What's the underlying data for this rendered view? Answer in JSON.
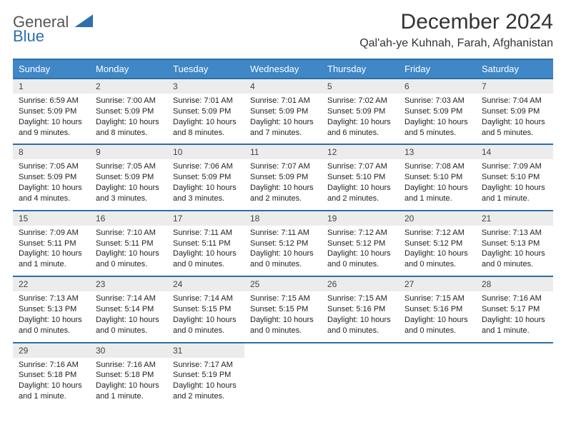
{
  "brand": {
    "line1": "General",
    "line2": "Blue"
  },
  "title": "December 2024",
  "location": "Qal'ah-ye Kuhnah, Farah, Afghanistan",
  "colors": {
    "accent": "#3f87c7",
    "line": "#2b6fa8",
    "dayNumBg": "#ececec",
    "bg": "#ffffff",
    "text": "#222222"
  },
  "dayNames": [
    "Sunday",
    "Monday",
    "Tuesday",
    "Wednesday",
    "Thursday",
    "Friday",
    "Saturday"
  ],
  "weeks": [
    [
      {
        "n": "1",
        "sr": "6:59 AM",
        "ss": "5:09 PM",
        "dl": "10 hours and 9 minutes."
      },
      {
        "n": "2",
        "sr": "7:00 AM",
        "ss": "5:09 PM",
        "dl": "10 hours and 8 minutes."
      },
      {
        "n": "3",
        "sr": "7:01 AM",
        "ss": "5:09 PM",
        "dl": "10 hours and 8 minutes."
      },
      {
        "n": "4",
        "sr": "7:01 AM",
        "ss": "5:09 PM",
        "dl": "10 hours and 7 minutes."
      },
      {
        "n": "5",
        "sr": "7:02 AM",
        "ss": "5:09 PM",
        "dl": "10 hours and 6 minutes."
      },
      {
        "n": "6",
        "sr": "7:03 AM",
        "ss": "5:09 PM",
        "dl": "10 hours and 5 minutes."
      },
      {
        "n": "7",
        "sr": "7:04 AM",
        "ss": "5:09 PM",
        "dl": "10 hours and 5 minutes."
      }
    ],
    [
      {
        "n": "8",
        "sr": "7:05 AM",
        "ss": "5:09 PM",
        "dl": "10 hours and 4 minutes."
      },
      {
        "n": "9",
        "sr": "7:05 AM",
        "ss": "5:09 PM",
        "dl": "10 hours and 3 minutes."
      },
      {
        "n": "10",
        "sr": "7:06 AM",
        "ss": "5:09 PM",
        "dl": "10 hours and 3 minutes."
      },
      {
        "n": "11",
        "sr": "7:07 AM",
        "ss": "5:09 PM",
        "dl": "10 hours and 2 minutes."
      },
      {
        "n": "12",
        "sr": "7:07 AM",
        "ss": "5:10 PM",
        "dl": "10 hours and 2 minutes."
      },
      {
        "n": "13",
        "sr": "7:08 AM",
        "ss": "5:10 PM",
        "dl": "10 hours and 1 minute."
      },
      {
        "n": "14",
        "sr": "7:09 AM",
        "ss": "5:10 PM",
        "dl": "10 hours and 1 minute."
      }
    ],
    [
      {
        "n": "15",
        "sr": "7:09 AM",
        "ss": "5:11 PM",
        "dl": "10 hours and 1 minute."
      },
      {
        "n": "16",
        "sr": "7:10 AM",
        "ss": "5:11 PM",
        "dl": "10 hours and 0 minutes."
      },
      {
        "n": "17",
        "sr": "7:11 AM",
        "ss": "5:11 PM",
        "dl": "10 hours and 0 minutes."
      },
      {
        "n": "18",
        "sr": "7:11 AM",
        "ss": "5:12 PM",
        "dl": "10 hours and 0 minutes."
      },
      {
        "n": "19",
        "sr": "7:12 AM",
        "ss": "5:12 PM",
        "dl": "10 hours and 0 minutes."
      },
      {
        "n": "20",
        "sr": "7:12 AM",
        "ss": "5:12 PM",
        "dl": "10 hours and 0 minutes."
      },
      {
        "n": "21",
        "sr": "7:13 AM",
        "ss": "5:13 PM",
        "dl": "10 hours and 0 minutes."
      }
    ],
    [
      {
        "n": "22",
        "sr": "7:13 AM",
        "ss": "5:13 PM",
        "dl": "10 hours and 0 minutes."
      },
      {
        "n": "23",
        "sr": "7:14 AM",
        "ss": "5:14 PM",
        "dl": "10 hours and 0 minutes."
      },
      {
        "n": "24",
        "sr": "7:14 AM",
        "ss": "5:15 PM",
        "dl": "10 hours and 0 minutes."
      },
      {
        "n": "25",
        "sr": "7:15 AM",
        "ss": "5:15 PM",
        "dl": "10 hours and 0 minutes."
      },
      {
        "n": "26",
        "sr": "7:15 AM",
        "ss": "5:16 PM",
        "dl": "10 hours and 0 minutes."
      },
      {
        "n": "27",
        "sr": "7:15 AM",
        "ss": "5:16 PM",
        "dl": "10 hours and 0 minutes."
      },
      {
        "n": "28",
        "sr": "7:16 AM",
        "ss": "5:17 PM",
        "dl": "10 hours and 1 minute."
      }
    ],
    [
      {
        "n": "29",
        "sr": "7:16 AM",
        "ss": "5:18 PM",
        "dl": "10 hours and 1 minute."
      },
      {
        "n": "30",
        "sr": "7:16 AM",
        "ss": "5:18 PM",
        "dl": "10 hours and 1 minute."
      },
      {
        "n": "31",
        "sr": "7:17 AM",
        "ss": "5:19 PM",
        "dl": "10 hours and 2 minutes."
      },
      null,
      null,
      null,
      null
    ]
  ],
  "labels": {
    "sunrise": "Sunrise:",
    "sunset": "Sunset:",
    "daylight": "Daylight:"
  }
}
